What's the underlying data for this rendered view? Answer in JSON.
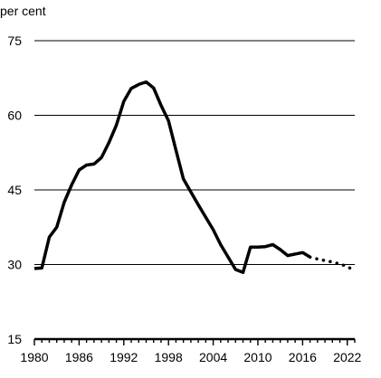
{
  "chart_data": {
    "type": "line",
    "title": "",
    "ylabel": "per cent",
    "xlabel": "",
    "x_ticks": [
      "1980",
      "1986",
      "1992",
      "1998",
      "2004",
      "2010",
      "2016",
      "2022"
    ],
    "y_ticks": [
      "15",
      "30",
      "45",
      "60",
      "75"
    ],
    "xlim": [
      1980,
      2023
    ],
    "ylim": [
      15,
      75
    ],
    "grid": "horizontal",
    "colors": {
      "line": "#000000",
      "grid": "#000000",
      "text": "#000000"
    },
    "series": [
      {
        "style": "solid",
        "x": [
          1980,
          1981,
          1982,
          1983,
          1984,
          1985,
          1986,
          1987,
          1988,
          1989,
          1990,
          1991,
          1992,
          1993,
          1994,
          1995,
          1996,
          1997,
          1998,
          1999,
          2000,
          2001,
          2002,
          2003,
          2004,
          2005,
          2006,
          2007,
          2008,
          2009,
          2010,
          2011,
          2012,
          2013,
          2014,
          2015,
          2016,
          2017
        ],
        "y": [
          29.2,
          29.3,
          35.5,
          37.5,
          42.5,
          46,
          49,
          50,
          50.2,
          51.5,
          54.5,
          58,
          62.8,
          65.4,
          66.2,
          66.7,
          65.5,
          62,
          58.9,
          53,
          47.2,
          44.6,
          42,
          39.5,
          37,
          34,
          31.5,
          29,
          28.4,
          33.5,
          33.5,
          33.6,
          34,
          33,
          31.8,
          32.1,
          32.4,
          31.5
        ]
      },
      {
        "style": "dotted",
        "x": [
          2017,
          2018,
          2019,
          2020,
          2021,
          2022,
          2023
        ],
        "y": [
          31.5,
          31.1,
          30.8,
          30.5,
          30.1,
          29.6,
          28.7
        ]
      }
    ]
  }
}
